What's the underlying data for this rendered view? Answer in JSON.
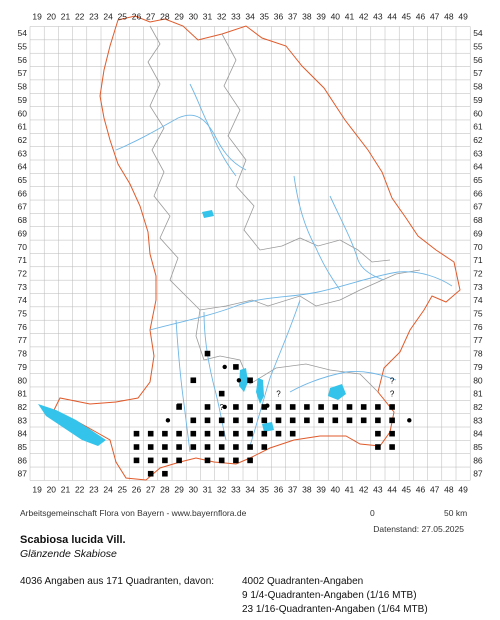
{
  "colors": {
    "grid": "#b8b8b8",
    "border": "#e05a2a",
    "district": "#9a9a9a",
    "river": "#6fb6e6",
    "lake": "#34c3ea",
    "record": "#000000",
    "text": "#222222"
  },
  "map": {
    "column_labels": [
      "19",
      "20",
      "21",
      "22",
      "23",
      "24",
      "25",
      "26",
      "27",
      "28",
      "29",
      "30",
      "31",
      "32",
      "33",
      "34",
      "35",
      "36",
      "37",
      "38",
      "39",
      "40",
      "41",
      "42",
      "43",
      "44",
      "45",
      "46",
      "47",
      "48",
      "49"
    ],
    "row_labels": [
      "54",
      "55",
      "56",
      "57",
      "58",
      "59",
      "60",
      "61",
      "62",
      "63",
      "64",
      "65",
      "66",
      "67",
      "68",
      "69",
      "70",
      "71",
      "72",
      "73",
      "74",
      "75",
      "76",
      "77",
      "78",
      "79",
      "80",
      "81",
      "82",
      "83",
      "84",
      "85",
      "86",
      "87"
    ],
    "records": {
      "squares": [
        [
          31,
          78
        ],
        [
          32,
          81
        ],
        [
          33,
          79
        ],
        [
          30,
          80
        ],
        [
          29,
          82
        ],
        [
          31,
          82
        ],
        [
          33,
          82
        ],
        [
          34,
          82
        ],
        [
          34,
          80
        ],
        [
          35,
          82
        ],
        [
          36,
          82
        ],
        [
          37,
          82
        ],
        [
          38,
          82
        ],
        [
          39,
          82
        ],
        [
          40,
          82
        ],
        [
          41,
          82
        ],
        [
          42,
          82
        ],
        [
          43,
          82
        ],
        [
          44,
          82
        ],
        [
          30,
          83
        ],
        [
          31,
          83
        ],
        [
          32,
          83
        ],
        [
          33,
          83
        ],
        [
          34,
          83
        ],
        [
          35,
          83
        ],
        [
          36,
          83
        ],
        [
          37,
          83
        ],
        [
          38,
          83
        ],
        [
          39,
          83
        ],
        [
          40,
          83
        ],
        [
          41,
          83
        ],
        [
          42,
          83
        ],
        [
          43,
          83
        ],
        [
          44,
          83
        ],
        [
          26,
          84
        ],
        [
          27,
          84
        ],
        [
          28,
          84
        ],
        [
          29,
          84
        ],
        [
          30,
          84
        ],
        [
          31,
          84
        ],
        [
          32,
          84
        ],
        [
          33,
          84
        ],
        [
          34,
          84
        ],
        [
          35,
          84
        ],
        [
          36,
          84
        ],
        [
          37,
          84
        ],
        [
          43,
          84
        ],
        [
          44,
          84
        ],
        [
          26,
          85
        ],
        [
          27,
          85
        ],
        [
          28,
          85
        ],
        [
          29,
          85
        ],
        [
          30,
          85
        ],
        [
          31,
          85
        ],
        [
          32,
          85
        ],
        [
          33,
          85
        ],
        [
          34,
          85
        ],
        [
          35,
          85
        ],
        [
          43,
          85
        ],
        [
          44,
          85
        ],
        [
          26,
          86
        ],
        [
          27,
          86
        ],
        [
          28,
          86
        ],
        [
          29,
          86
        ],
        [
          31,
          86
        ],
        [
          32,
          86
        ],
        [
          33,
          86
        ],
        [
          34,
          86
        ],
        [
          27,
          87
        ],
        [
          28,
          87
        ]
      ],
      "dots": [
        [
          32,
          79
        ],
        [
          33,
          80
        ],
        [
          28,
          83
        ],
        [
          45,
          83
        ],
        [
          35,
          81.9
        ],
        [
          32,
          82
        ]
      ],
      "queries": [
        [
          32,
          82
        ],
        [
          36,
          81
        ],
        [
          44,
          80
        ],
        [
          44,
          81
        ]
      ],
      "dashes": [
        [
          29,
          82
        ]
      ]
    }
  },
  "attribution": "Arbeitsgemeinschaft Flora von Bayern - www.bayernflora.de",
  "scale": {
    "start": "0",
    "end": "50 km"
  },
  "date_stand": "Datenstand: 27.05.2025",
  "species": {
    "name": "Scabiosa lucida Vill.",
    "common": "Glänzende Skabiose"
  },
  "stats": {
    "total": "4036 Angaben aus 171 Quadranten, davon:",
    "quadrant": "4002 Quadranten-Angaben",
    "sixteenth": "9 1/4-Quadranten-Angaben (1/16 MTB)",
    "sixtyfourth": "23 1/16-Quadranten-Angaben (1/64 MTB)"
  }
}
